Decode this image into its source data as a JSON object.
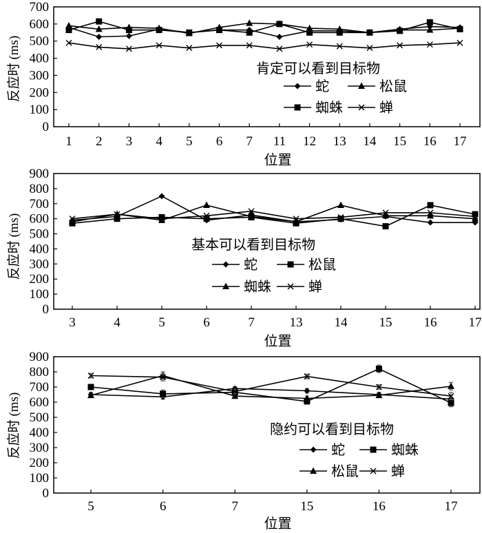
{
  "chart_data": [
    {
      "type": "line",
      "title": "肯定可以看到目标物",
      "ylabel_cn": "反应时",
      "ylabel_unit": "(ms)",
      "xlabel": "位置",
      "ylim": [
        0,
        700
      ],
      "yticks": [
        0,
        100,
        200,
        300,
        400,
        500,
        600,
        700
      ],
      "categories": [
        "1",
        "2",
        "3",
        "4",
        "5",
        "6",
        "7",
        "11",
        "12",
        "13",
        "14",
        "15",
        "16",
        "17"
      ],
      "legend_placement": "right",
      "series": [
        {
          "name": "蛇",
          "marker": "diamond",
          "values": [
            580,
            525,
            530,
            570,
            550,
            565,
            565,
            525,
            560,
            560,
            550,
            570,
            585,
            580
          ]
        },
        {
          "name": "松鼠",
          "marker": "triangle",
          "values": [
            590,
            570,
            580,
            575,
            545,
            580,
            605,
            600,
            575,
            570,
            550,
            565,
            565,
            575
          ]
        },
        {
          "name": "蜘蛛",
          "marker": "square",
          "values": [
            565,
            615,
            565,
            565,
            550,
            565,
            550,
            600,
            550,
            550,
            550,
            560,
            610,
            570
          ]
        },
        {
          "name": "蝉",
          "marker": "x",
          "values": [
            490,
            465,
            455,
            475,
            460,
            475,
            475,
            455,
            480,
            470,
            460,
            475,
            480,
            490
          ]
        }
      ]
    },
    {
      "type": "line",
      "title": "基本可以看到目标物",
      "ylabel_cn": "反应时",
      "ylabel_unit": "(ms)",
      "xlabel": "位置",
      "ylim": [
        0,
        900
      ],
      "yticks": [
        0,
        100,
        200,
        300,
        400,
        500,
        600,
        700,
        800,
        900
      ],
      "categories": [
        "3",
        "4",
        "5",
        "6",
        "7",
        "13",
        "14",
        "15",
        "16",
        "17"
      ],
      "legend_placement": "center",
      "series": [
        {
          "name": "蛇",
          "marker": "diamond",
          "values": [
            590,
            615,
            750,
            590,
            625,
            580,
            595,
            615,
            575,
            575
          ]
        },
        {
          "name": "松鼠",
          "marker": "square",
          "values": [
            570,
            600,
            610,
            600,
            610,
            570,
            600,
            550,
            690,
            630
          ]
        },
        {
          "name": "蜘蛛",
          "marker": "triangle",
          "values": [
            580,
            630,
            590,
            690,
            615,
            580,
            690,
            620,
            620,
            600
          ]
        },
        {
          "name": "蝉",
          "marker": "x",
          "values": [
            600,
            630,
            600,
            620,
            650,
            600,
            610,
            640,
            640,
            615
          ]
        }
      ]
    },
    {
      "type": "line",
      "title": "隐约可以看到目标物",
      "ylabel_cn": "反应时",
      "ylabel_unit": "(ms)",
      "xlabel": "位置",
      "ylim": [
        0,
        900
      ],
      "yticks": [
        0,
        100,
        200,
        300,
        400,
        500,
        600,
        700,
        800,
        900
      ],
      "categories": [
        "5",
        "6",
        "7",
        "15",
        "16",
        "17"
      ],
      "legend_placement": "right",
      "error_bars": true,
      "series": [
        {
          "name": "蛇",
          "marker": "diamond",
          "values": [
            650,
            635,
            690,
            675,
            650,
            620
          ],
          "errors": [
            15,
            15,
            12,
            15,
            15,
            25
          ]
        },
        {
          "name": "蜘蛛",
          "marker": "square",
          "values": [
            700,
            655,
            665,
            605,
            820,
            595
          ],
          "errors": [
            15,
            25,
            15,
            15,
            25,
            25
          ]
        },
        {
          "name": "松鼠",
          "marker": "triangle",
          "values": [
            645,
            775,
            640,
            625,
            645,
            705
          ],
          "errors": [
            15,
            25,
            15,
            15,
            15,
            25
          ]
        },
        {
          "name": "蝉",
          "marker": "x",
          "values": [
            775,
            765,
            670,
            770,
            700,
            640
          ],
          "errors": [
            15,
            25,
            15,
            15,
            15,
            25
          ]
        }
      ]
    }
  ]
}
